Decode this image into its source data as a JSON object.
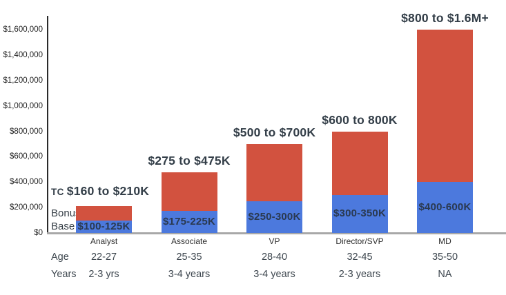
{
  "chart_data": {
    "type": "bar",
    "stacked": true,
    "grid": false,
    "legend_position": "none",
    "categories": [
      "Analyst",
      "Associate",
      "VP",
      "Director/SVP",
      "MD"
    ],
    "series": [
      {
        "name": "Base",
        "color": "#4c79dd",
        "values": [
          100000,
          175000,
          250000,
          300000,
          400000
        ]
      },
      {
        "name": "Bonus",
        "color": "#d2523f",
        "values": [
          110000,
          300000,
          450000,
          500000,
          1200000
        ]
      }
    ],
    "totals": [
      210000,
      475000,
      700000,
      800000,
      1600000
    ],
    "tc_prefix": "TC",
    "total_labels": [
      "$160 to $210K",
      "$275 to $475K",
      "$500 to $700K",
      "$600 to 800K",
      "$800 to $1.6M+"
    ],
    "base_segment_labels": [
      "$100-125K",
      "$175-225K",
      "$250-300K",
      "$300-350K",
      "$400-600K"
    ],
    "segment_annotations": {
      "bonus": "Bonus",
      "base": "Base"
    },
    "rows": [
      {
        "header": "Age",
        "values": [
          "22-27",
          "25-35",
          "28-40",
          "32-45",
          "35-50"
        ]
      },
      {
        "header": "Years",
        "values": [
          "2-3 yrs",
          "3-4 years",
          "3-4 years",
          "2-3 years",
          "NA"
        ]
      }
    ],
    "y_axis": {
      "tick_values": [
        0,
        200000,
        400000,
        600000,
        800000,
        1000000,
        1200000,
        1400000,
        1600000
      ],
      "tick_labels": [
        "$0",
        "$200,000",
        "$400,000",
        "$600,000",
        "$800,000",
        "$1,000,000",
        "$1,200,000",
        "$1,400,000",
        "$1,600,000"
      ],
      "ylim": [
        0,
        1710000
      ]
    },
    "colors": {
      "base_bar": "#4c79dd",
      "bonus_bar": "#d2523f",
      "label_text": "#333e48",
      "base_label_text": "#2a3950",
      "axis_line": "#2a2a2a",
      "baseline": "#a8a8a8"
    }
  }
}
